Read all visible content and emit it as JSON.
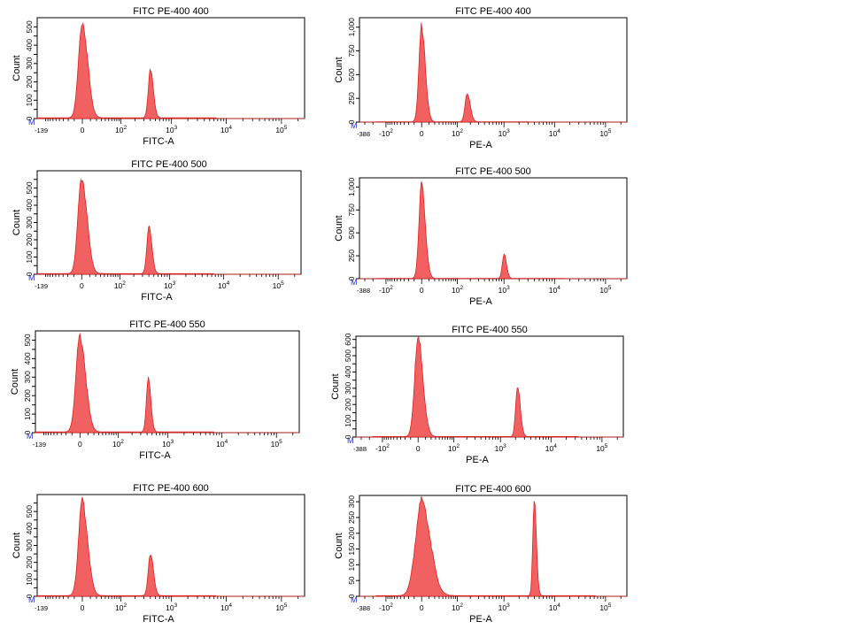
{
  "figure": {
    "marker_letter": "M",
    "marker_color": "#2030c0",
    "fill_color": "#f05050",
    "line_color": "#e02020"
  },
  "chart_data": [
    {
      "type": "area",
      "panel": "fitc-1",
      "title": "FITC PE-400 400",
      "xlabel": "FITC-A",
      "ylabel": "Count",
      "xlim": [
        -139,
        262143
      ],
      "ylim": [
        0,
        550
      ],
      "ytick_values": [
        0,
        50,
        100,
        150,
        200,
        250,
        300,
        350,
        400,
        450,
        500
      ],
      "ytick_labels": [
        "0",
        "",
        "100",
        "",
        "200",
        "",
        "300",
        "",
        "400",
        "",
        "500"
      ],
      "xmin_label": "-139",
      "peaks": [
        {
          "center": 0,
          "height": 525,
          "width": 0.08
        },
        {
          "center": 400,
          "height": 255,
          "width": 0.045
        }
      ],
      "baseline": 4
    },
    {
      "type": "area",
      "panel": "pe-1",
      "title": "FITC PE-400 400",
      "xlabel": "PE-A",
      "ylabel": "Count",
      "xlim": [
        -388,
        262143
      ],
      "ylim": [
        0,
        1100
      ],
      "ytick_values": [
        0,
        250,
        500,
        750,
        1000
      ],
      "ytick_labels": [
        "0",
        "250",
        "500",
        "750",
        "1,000"
      ],
      "xmin_label": "-388",
      "peaks": [
        {
          "center": 0,
          "height": 1010,
          "width": 0.06
        },
        {
          "center": 170,
          "height": 290,
          "width": 0.05
        }
      ],
      "baseline": 3
    },
    {
      "type": "area",
      "panel": "fitc-2",
      "title": "FITC PE-400 500",
      "xlabel": "FITC-A",
      "ylabel": "Count",
      "xlim": [
        -139,
        262143
      ],
      "ylim": [
        0,
        600
      ],
      "ytick_values": [
        0,
        50,
        100,
        150,
        200,
        250,
        300,
        350,
        400,
        450,
        500,
        550
      ],
      "ytick_labels": [
        "0",
        "",
        "100",
        "",
        "200",
        "",
        "300",
        "",
        "400",
        "",
        "500",
        ""
      ],
      "xmin_label": "-139",
      "peaks": [
        {
          "center": 0,
          "height": 555,
          "width": 0.08
        },
        {
          "center": 400,
          "height": 270,
          "width": 0.045
        }
      ],
      "baseline": 4
    },
    {
      "type": "area",
      "panel": "pe-2",
      "title": "FITC PE-400 500",
      "xlabel": "PE-A",
      "ylabel": "Count",
      "xlim": [
        -388,
        262143
      ],
      "ylim": [
        0,
        1100
      ],
      "ytick_values": [
        0,
        250,
        500,
        750,
        1000
      ],
      "ytick_labels": [
        "0",
        "250",
        "500",
        "750",
        "1,000"
      ],
      "xmin_label": "-388",
      "peaks": [
        {
          "center": 0,
          "height": 1010,
          "width": 0.06
        },
        {
          "center": 1000,
          "height": 260,
          "width": 0.04
        }
      ],
      "baseline": 3
    },
    {
      "type": "area",
      "panel": "fitc-3",
      "title": "FITC PE-400 550",
      "xlabel": "FITC-A",
      "ylabel": "Count",
      "xlim": [
        -139,
        262143
      ],
      "ylim": [
        0,
        550
      ],
      "ytick_values": [
        0,
        50,
        100,
        150,
        200,
        250,
        300,
        350,
        400,
        450,
        500
      ],
      "ytick_labels": [
        "0",
        "",
        "100",
        "",
        "200",
        "",
        "300",
        "",
        "400",
        "",
        "500"
      ],
      "xmin_label": "-139",
      "peaks": [
        {
          "center": 0,
          "height": 520,
          "width": 0.085
        },
        {
          "center": 420,
          "height": 285,
          "width": 0.04
        }
      ],
      "baseline": 4
    },
    {
      "type": "area",
      "panel": "pe-3",
      "title": "FITC PE-400 550",
      "xlabel": "PE-A",
      "ylabel": "Count",
      "xlim": [
        -388,
        262143
      ],
      "ylim": [
        0,
        620
      ],
      "ytick_values": [
        0,
        50,
        100,
        150,
        200,
        250,
        300,
        350,
        400,
        450,
        500,
        550,
        600
      ],
      "ytick_labels": [
        "0",
        "",
        "100",
        "",
        "200",
        "",
        "300",
        "",
        "400",
        "",
        "500",
        "",
        "600"
      ],
      "xmin_label": "-388",
      "peaks": [
        {
          "center": 0,
          "height": 595,
          "width": 0.08
        },
        {
          "center": 2200,
          "height": 300,
          "width": 0.045
        }
      ],
      "baseline": 3
    },
    {
      "type": "area",
      "panel": "fitc-4",
      "title": "FITC PE-400 600",
      "xlabel": "FITC-A",
      "ylabel": "Count",
      "xlim": [
        -139,
        262143
      ],
      "ylim": [
        0,
        600
      ],
      "ytick_values": [
        0,
        50,
        100,
        150,
        200,
        250,
        300,
        350,
        400,
        450,
        500,
        550
      ],
      "ytick_labels": [
        "0",
        "",
        "100",
        "",
        "200",
        "",
        "300",
        "",
        "400",
        "",
        "500",
        ""
      ],
      "xmin_label": "-139",
      "peaks": [
        {
          "center": 0,
          "height": 550,
          "width": 0.08
        },
        {
          "center": 400,
          "height": 255,
          "width": 0.045
        }
      ],
      "baseline": 4
    },
    {
      "type": "area",
      "panel": "pe-4",
      "title": "FITC PE-400 600",
      "xlabel": "PE-A",
      "ylabel": "Count",
      "xlim": [
        -388,
        262143
      ],
      "ylim": [
        0,
        320
      ],
      "ytick_values": [
        0,
        50,
        100,
        150,
        200,
        250,
        300
      ],
      "ytick_labels": [
        "0",
        "50",
        "100",
        "150",
        "200",
        "250",
        "300"
      ],
      "xmin_label": "-388",
      "peaks": [
        {
          "center": 0,
          "height": 300,
          "width": 0.14
        },
        {
          "center": 4000,
          "height": 290,
          "width": 0.035
        }
      ],
      "baseline": 2
    }
  ]
}
